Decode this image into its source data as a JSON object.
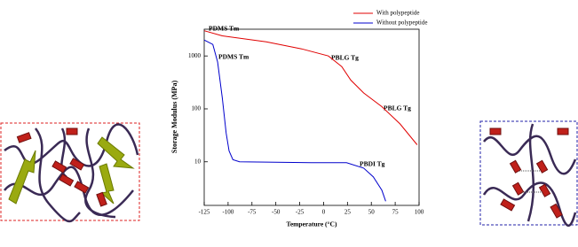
{
  "chart_data": {
    "type": "line",
    "y_label": "Storage Modulus (MPa)",
    "x_label": "Temperature (°C)",
    "xlim": [
      -125,
      100
    ],
    "xticks": [
      -125,
      -100,
      -75,
      -50,
      -25,
      0,
      25,
      50,
      75,
      100
    ],
    "ylim": [
      1.5,
      3200
    ],
    "yticks": [
      10,
      100,
      1000
    ],
    "y_scale": "log",
    "series": [
      {
        "name": "With polypeptide",
        "color": "#e00000",
        "x": [
          -125,
          -106,
          -60,
          -23,
          5,
          19,
          28.5,
          42,
          61,
          80,
          98
        ],
        "values": [
          3000,
          2400,
          1850,
          1360,
          1000,
          630,
          350,
          200,
          110,
          52,
          21
        ]
      },
      {
        "name": "Without polypeptide",
        "color": "#0000cc",
        "x": [
          -125,
          -116,
          -111,
          -106,
          -102,
          -99,
          -95,
          -88,
          -13,
          24,
          42,
          52,
          61,
          65
        ],
        "values": [
          2000,
          1650,
          770,
          160,
          35,
          16,
          11,
          10,
          9.6,
          9.6,
          7.6,
          5.2,
          2.9,
          1.8
        ]
      }
    ],
    "annotations": [
      "PDMS Tm",
      "PDMS Tm",
      "PBLG Tg",
      "PBLG Tg",
      "PBDI Tg"
    ]
  }
}
